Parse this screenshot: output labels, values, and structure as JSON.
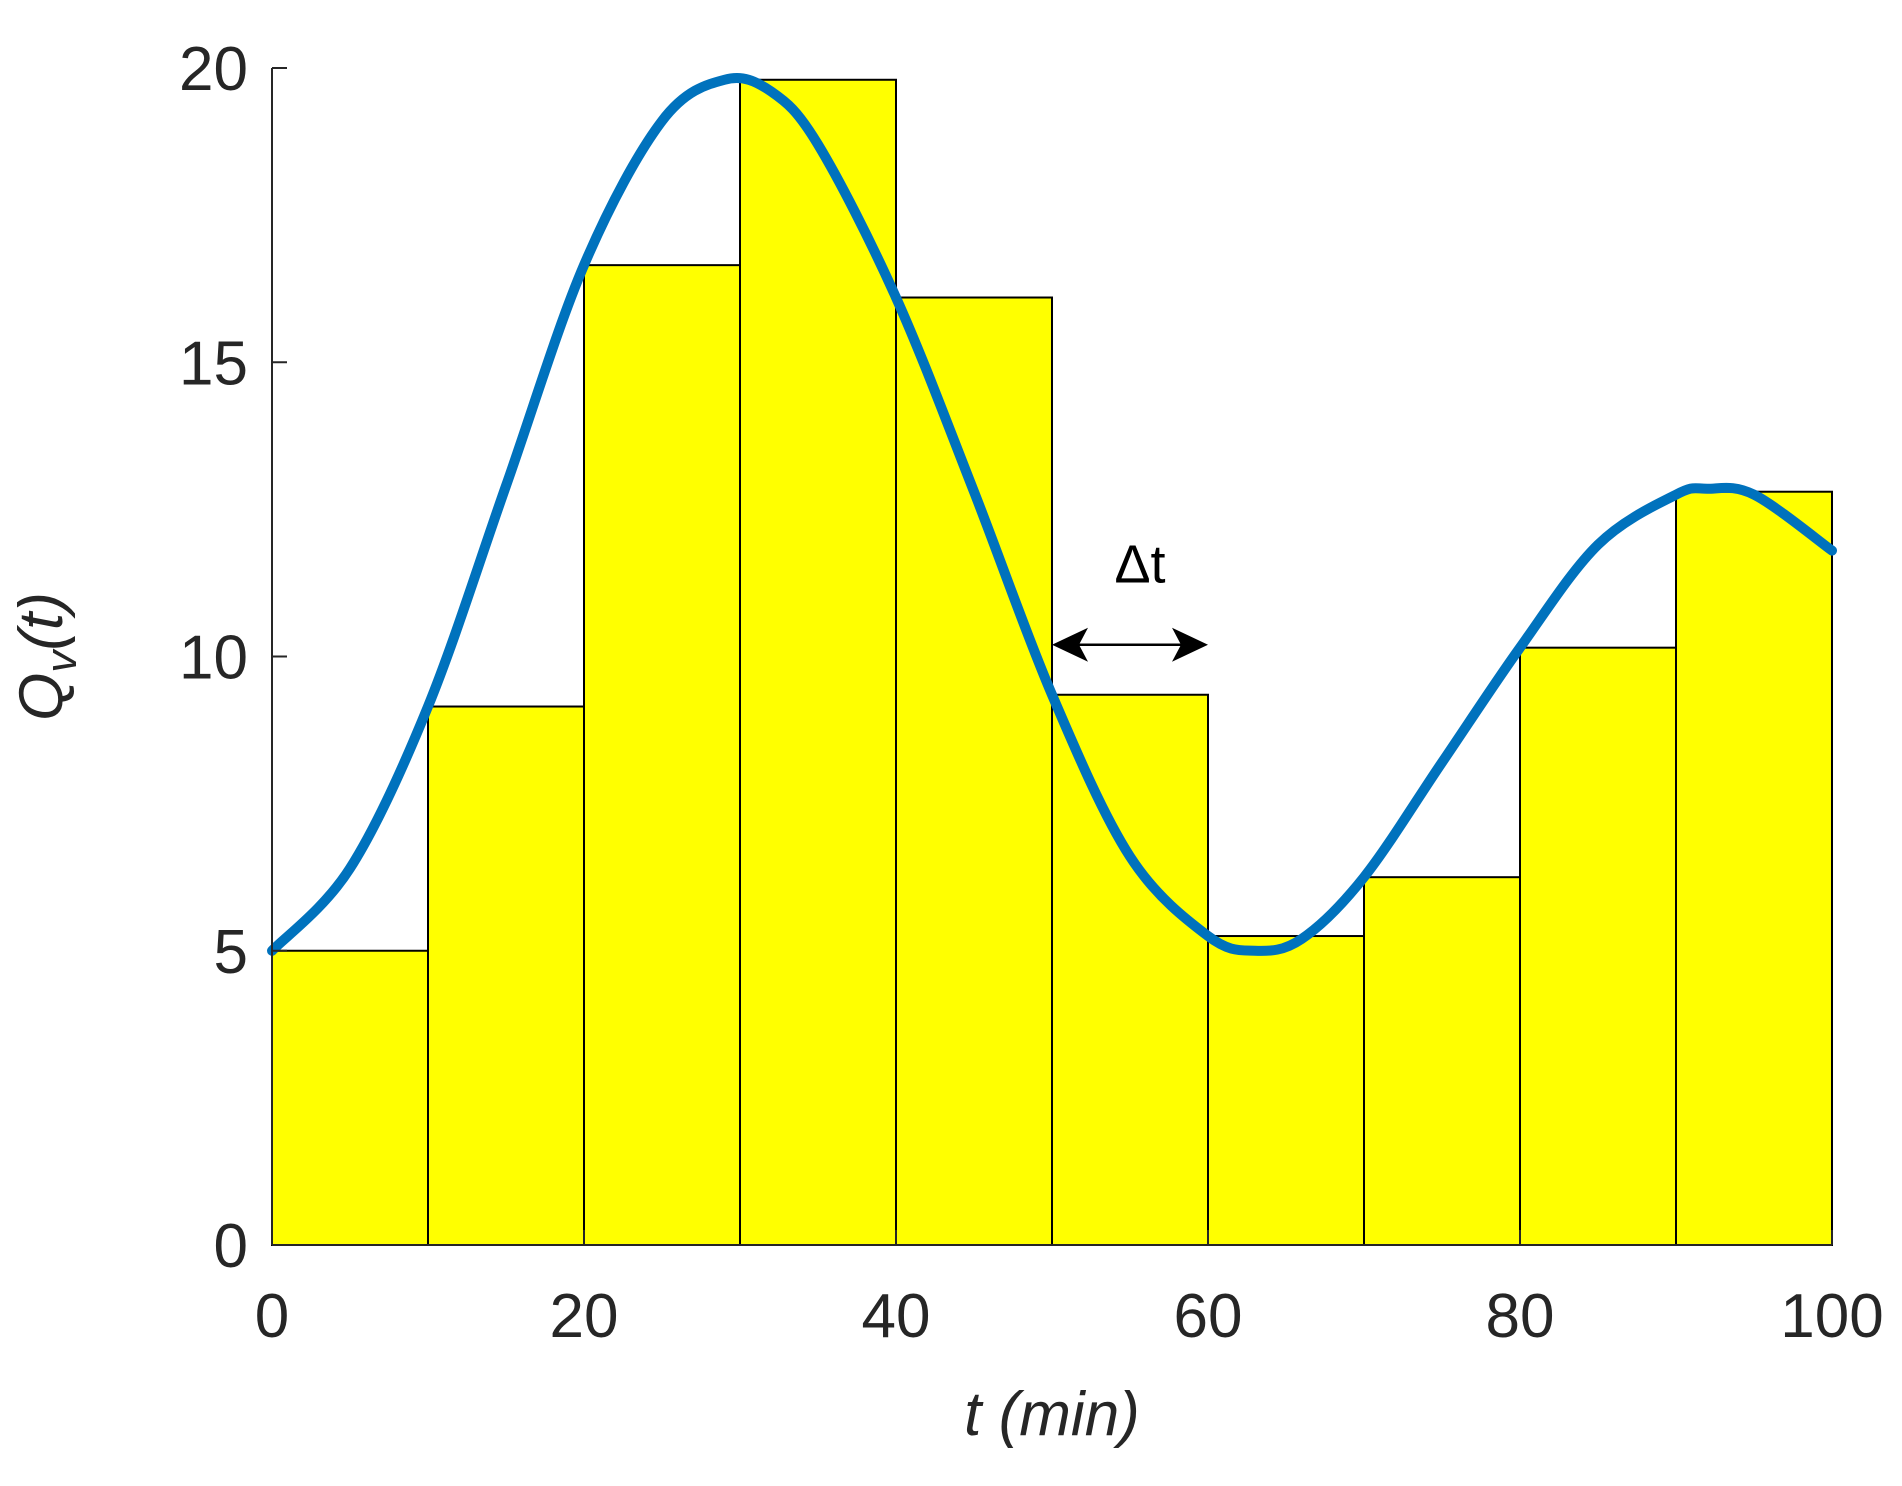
{
  "chart_data": {
    "type": "bar",
    "title": "",
    "xlabel": "t (min)",
    "ylabel_main": "Q",
    "ylabel_sub": "v",
    "ylabel_tail": "(t)",
    "xlim": [
      0,
      100
    ],
    "ylim": [
      0,
      20
    ],
    "xticks": [
      0,
      20,
      40,
      60,
      80,
      100
    ],
    "yticks": [
      0,
      5,
      10,
      15,
      20
    ],
    "grid": false,
    "bar_color": "#ffff00",
    "bar_edge_color": "#000000",
    "curve_color": "#0072bd",
    "bars": [
      {
        "x_start": 0,
        "x_end": 10,
        "value": 5.0
      },
      {
        "x_start": 10,
        "x_end": 20,
        "value": 9.15
      },
      {
        "x_start": 20,
        "x_end": 30,
        "value": 16.65
      },
      {
        "x_start": 30,
        "x_end": 40,
        "value": 19.8
      },
      {
        "x_start": 40,
        "x_end": 50,
        "value": 16.1
      },
      {
        "x_start": 50,
        "x_end": 60,
        "value": 9.35
      },
      {
        "x_start": 60,
        "x_end": 70,
        "value": 5.25
      },
      {
        "x_start": 70,
        "x_end": 80,
        "value": 6.25
      },
      {
        "x_start": 80,
        "x_end": 90,
        "value": 10.15
      },
      {
        "x_start": 90,
        "x_end": 100,
        "value": 12.8
      }
    ],
    "curve": {
      "x": [
        0,
        5,
        10,
        15,
        20,
        25,
        29,
        32,
        35,
        40,
        45,
        50,
        55,
        60,
        63,
        66,
        70,
        75,
        80,
        85,
        90,
        92,
        95,
        100
      ],
      "y": [
        5.0,
        6.4,
        9.15,
        12.9,
        16.65,
        19.1,
        19.8,
        19.6,
        18.7,
        16.1,
        12.8,
        9.35,
        6.6,
        5.25,
        5.0,
        5.2,
        6.25,
        8.2,
        10.15,
        11.9,
        12.75,
        12.85,
        12.75,
        11.8
      ]
    },
    "annotation": {
      "label": "Δt",
      "x_start": 50,
      "x_end": 60,
      "y": 10.2
    }
  }
}
